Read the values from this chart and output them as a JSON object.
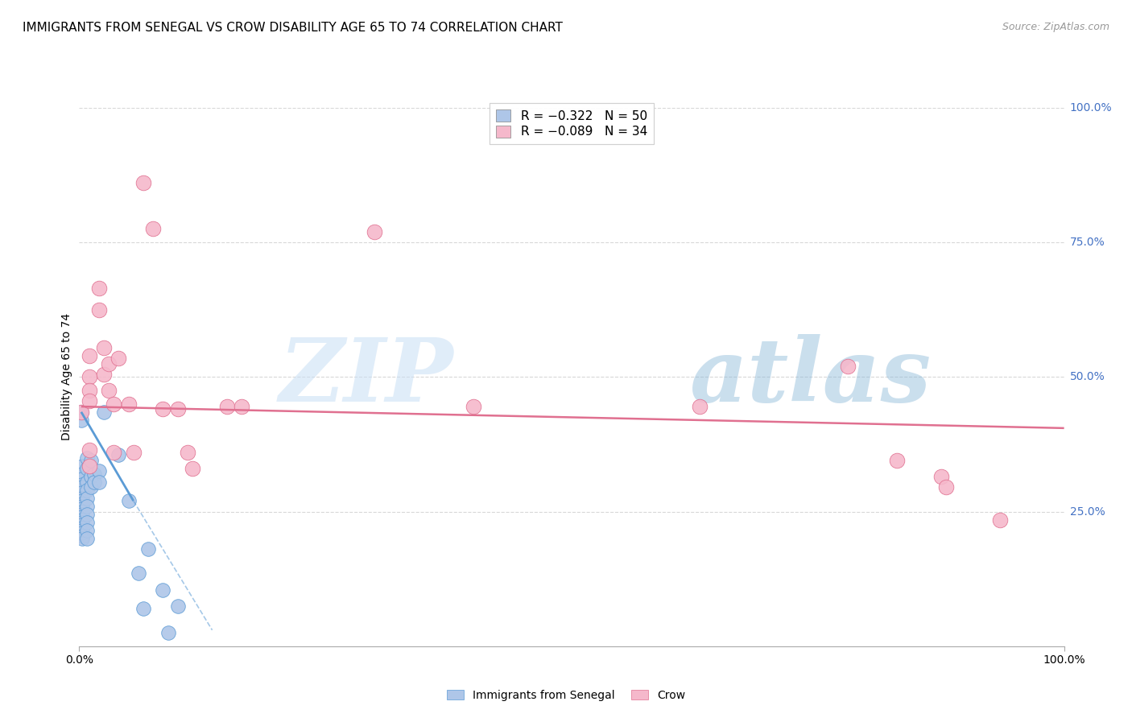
{
  "title": "IMMIGRANTS FROM SENEGAL VS CROW DISABILITY AGE 65 TO 74 CORRELATION CHART",
  "source": "Source: ZipAtlas.com",
  "ylabel": "Disability Age 65 to 74",
  "right_yticks": [
    "100.0%",
    "75.0%",
    "50.0%",
    "25.0%"
  ],
  "right_ytick_vals": [
    1.0,
    0.75,
    0.5,
    0.25
  ],
  "xlim": [
    0.0,
    1.0
  ],
  "ylim": [
    0.0,
    1.0
  ],
  "watermark_zip": "ZIP",
  "watermark_atlas": "atlas",
  "legend_top": [
    {
      "label": "R = −0.322   N = 50",
      "color": "#aec6e8"
    },
    {
      "label": "R = −0.089   N = 34",
      "color": "#f5b8cb"
    }
  ],
  "legend_bottom": [
    {
      "label": "Immigrants from Senegal",
      "color": "#aec6e8",
      "edge": "#5b9bd5"
    },
    {
      "label": "Crow",
      "color": "#f5b8cb",
      "edge": "#e07090"
    }
  ],
  "senegal_points": [
    [
      0.002,
      0.435
    ],
    [
      0.002,
      0.42
    ],
    [
      0.003,
      0.335
    ],
    [
      0.003,
      0.32
    ],
    [
      0.003,
      0.31
    ],
    [
      0.003,
      0.3
    ],
    [
      0.003,
      0.295
    ],
    [
      0.003,
      0.285
    ],
    [
      0.003,
      0.275
    ],
    [
      0.003,
      0.27
    ],
    [
      0.003,
      0.265
    ],
    [
      0.003,
      0.26
    ],
    [
      0.003,
      0.255
    ],
    [
      0.003,
      0.25
    ],
    [
      0.003,
      0.245
    ],
    [
      0.003,
      0.24
    ],
    [
      0.003,
      0.235
    ],
    [
      0.003,
      0.23
    ],
    [
      0.003,
      0.225
    ],
    [
      0.003,
      0.22
    ],
    [
      0.003,
      0.215
    ],
    [
      0.003,
      0.21
    ],
    [
      0.003,
      0.205
    ],
    [
      0.003,
      0.2
    ],
    [
      0.008,
      0.35
    ],
    [
      0.008,
      0.33
    ],
    [
      0.008,
      0.305
    ],
    [
      0.008,
      0.29
    ],
    [
      0.008,
      0.275
    ],
    [
      0.008,
      0.26
    ],
    [
      0.008,
      0.245
    ],
    [
      0.008,
      0.23
    ],
    [
      0.008,
      0.215
    ],
    [
      0.008,
      0.2
    ],
    [
      0.012,
      0.345
    ],
    [
      0.012,
      0.315
    ],
    [
      0.012,
      0.295
    ],
    [
      0.015,
      0.32
    ],
    [
      0.015,
      0.305
    ],
    [
      0.02,
      0.325
    ],
    [
      0.02,
      0.305
    ],
    [
      0.025,
      0.435
    ],
    [
      0.04,
      0.355
    ],
    [
      0.05,
      0.27
    ],
    [
      0.06,
      0.135
    ],
    [
      0.065,
      0.07
    ],
    [
      0.07,
      0.18
    ],
    [
      0.085,
      0.105
    ],
    [
      0.09,
      0.025
    ],
    [
      0.1,
      0.075
    ]
  ],
  "crow_points": [
    [
      0.002,
      0.435
    ],
    [
      0.01,
      0.54
    ],
    [
      0.01,
      0.5
    ],
    [
      0.01,
      0.475
    ],
    [
      0.01,
      0.455
    ],
    [
      0.01,
      0.365
    ],
    [
      0.01,
      0.335
    ],
    [
      0.02,
      0.665
    ],
    [
      0.02,
      0.625
    ],
    [
      0.025,
      0.555
    ],
    [
      0.025,
      0.505
    ],
    [
      0.03,
      0.525
    ],
    [
      0.03,
      0.475
    ],
    [
      0.035,
      0.45
    ],
    [
      0.035,
      0.36
    ],
    [
      0.04,
      0.535
    ],
    [
      0.05,
      0.45
    ],
    [
      0.055,
      0.36
    ],
    [
      0.065,
      0.86
    ],
    [
      0.075,
      0.775
    ],
    [
      0.085,
      0.44
    ],
    [
      0.1,
      0.44
    ],
    [
      0.11,
      0.36
    ],
    [
      0.115,
      0.33
    ],
    [
      0.15,
      0.445
    ],
    [
      0.165,
      0.445
    ],
    [
      0.3,
      0.77
    ],
    [
      0.4,
      0.445
    ],
    [
      0.63,
      0.445
    ],
    [
      0.78,
      0.52
    ],
    [
      0.83,
      0.345
    ],
    [
      0.875,
      0.315
    ],
    [
      0.88,
      0.295
    ],
    [
      0.935,
      0.235
    ]
  ],
  "senegal_line_solid": [
    [
      0.002,
      0.435
    ],
    [
      0.055,
      0.27
    ]
  ],
  "senegal_line_dashed": [
    [
      0.055,
      0.27
    ],
    [
      0.135,
      0.03
    ]
  ],
  "crow_line": [
    [
      0.002,
      0.445
    ],
    [
      1.0,
      0.405
    ]
  ],
  "senegal_color": "#aec6e8",
  "senegal_edge": "#5b9bd5",
  "crow_color": "#f5b8cb",
  "crow_edge": "#e07090",
  "background_color": "#ffffff",
  "grid_color": "#d8d8d8",
  "right_axis_color": "#4472c4",
  "title_fontsize": 11,
  "source_fontsize": 9,
  "axis_label_fontsize": 10,
  "tick_fontsize": 10,
  "legend_fontsize": 11
}
